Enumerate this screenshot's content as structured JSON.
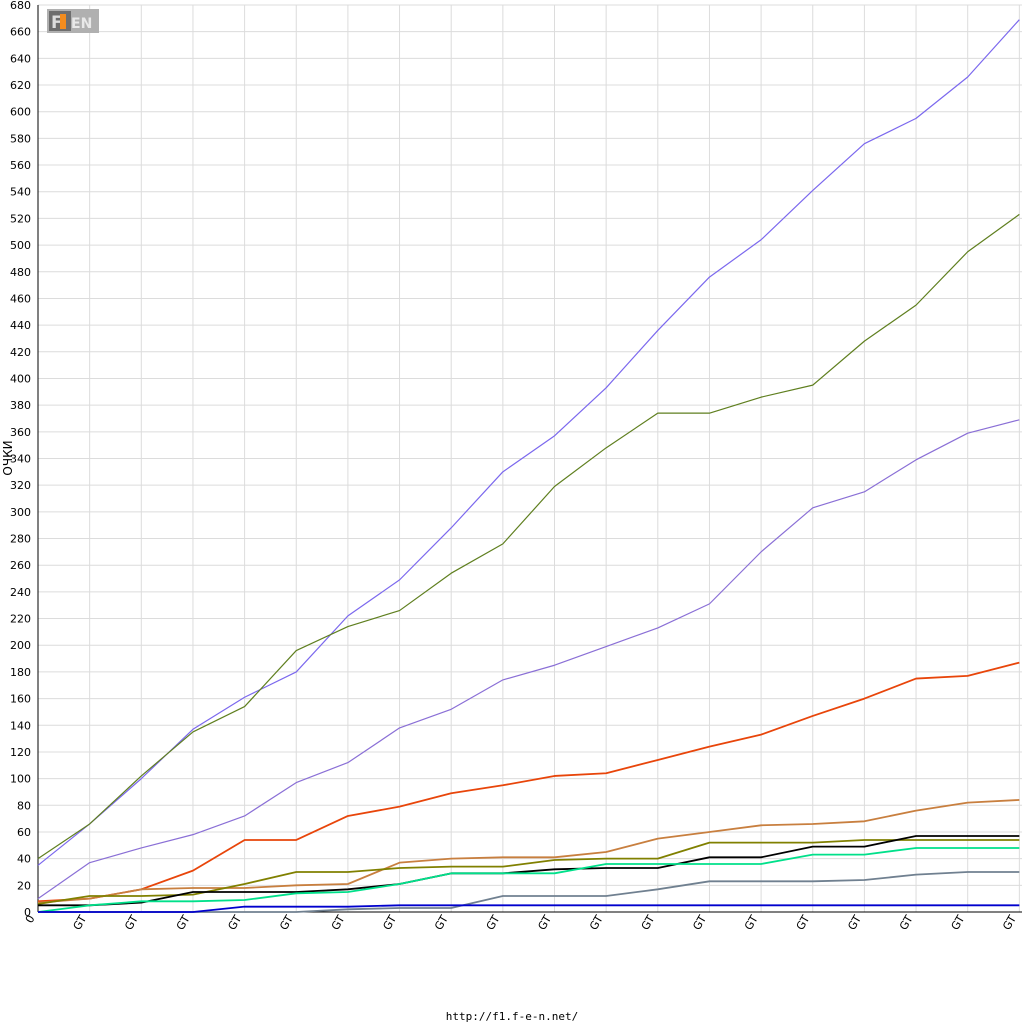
{
  "footer": {
    "url": "http://f1.f-e-n.net/"
  },
  "logo": {
    "icon": "f1-fen-logo"
  },
  "chart_data": {
    "type": "line",
    "ylabel": "ОЧКИ",
    "xlabel": "",
    "ylim": [
      0,
      680
    ],
    "ytick_step": 20,
    "grid": true,
    "x_tick_labels": [
      "0",
      "GT",
      "GT",
      "GT",
      "GT",
      "GT",
      "GT",
      "GT",
      "GT",
      "GT",
      "GT",
      "GT",
      "GT",
      "GT",
      "GT",
      "GT",
      "GT",
      "GT",
      "GT",
      "GT"
    ],
    "x": [
      0,
      1,
      2,
      3,
      4,
      5,
      6,
      7,
      8,
      9,
      10,
      11,
      12,
      13,
      14,
      15,
      16,
      17,
      18,
      19
    ],
    "series": [
      {
        "color": "#7b68ee",
        "width": 1.2,
        "values": [
          35,
          66,
          100,
          137,
          161,
          180,
          222,
          249,
          288,
          330,
          357,
          393,
          436,
          476,
          504,
          541,
          576,
          595,
          626,
          669
        ]
      },
      {
        "color": "#5f7f1f",
        "width": 1.2,
        "values": [
          40,
          66,
          102,
          135,
          154,
          196,
          214,
          226,
          254,
          276,
          319,
          348,
          374,
          374,
          386,
          395,
          428,
          455,
          495,
          523
        ]
      },
      {
        "color": "#8a6fd6",
        "width": 1.2,
        "values": [
          10,
          37,
          48,
          58,
          72,
          97,
          112,
          138,
          152,
          174,
          185,
          199,
          213,
          231,
          270,
          303,
          315,
          339,
          359,
          369
        ]
      },
      {
        "color": "#e8450a",
        "width": 1.8,
        "values": [
          8,
          10,
          17,
          31,
          54,
          54,
          72,
          79,
          89,
          95,
          102,
          104,
          114,
          124,
          133,
          147,
          160,
          175,
          177,
          187
        ]
      },
      {
        "color": "#c87f3f",
        "width": 1.8,
        "values": [
          7,
          10,
          17,
          18,
          18,
          20,
          21,
          37,
          40,
          41,
          41,
          45,
          55,
          60,
          65,
          66,
          68,
          76,
          82,
          84
        ]
      },
      {
        "color": "#808000",
        "width": 1.8,
        "values": [
          6,
          12,
          12,
          13,
          21,
          30,
          30,
          33,
          34,
          34,
          39,
          40,
          40,
          52,
          52,
          52,
          54,
          54,
          54,
          54
        ]
      },
      {
        "color": "#000000",
        "width": 1.8,
        "values": [
          5,
          5,
          7,
          15,
          15,
          15,
          17,
          21,
          29,
          29,
          32,
          33,
          33,
          41,
          41,
          49,
          49,
          57,
          57,
          57
        ]
      },
      {
        "color": "#00e08a",
        "width": 1.8,
        "values": [
          0,
          5,
          8,
          8,
          9,
          14,
          15,
          21,
          29,
          29,
          29,
          36,
          36,
          36,
          36,
          43,
          43,
          48,
          48,
          48
        ]
      },
      {
        "color": "#708090",
        "width": 1.8,
        "values": [
          0,
          0,
          0,
          0,
          0,
          0,
          2,
          3,
          3,
          12,
          12,
          12,
          17,
          23,
          23,
          23,
          24,
          28,
          30,
          30
        ]
      },
      {
        "color": "#0000cd",
        "width": 1.8,
        "values": [
          0,
          0,
          0,
          0,
          4,
          4,
          4,
          5,
          5,
          5,
          5,
          5,
          5,
          5,
          5,
          5,
          5,
          5,
          5,
          5
        ]
      }
    ]
  }
}
